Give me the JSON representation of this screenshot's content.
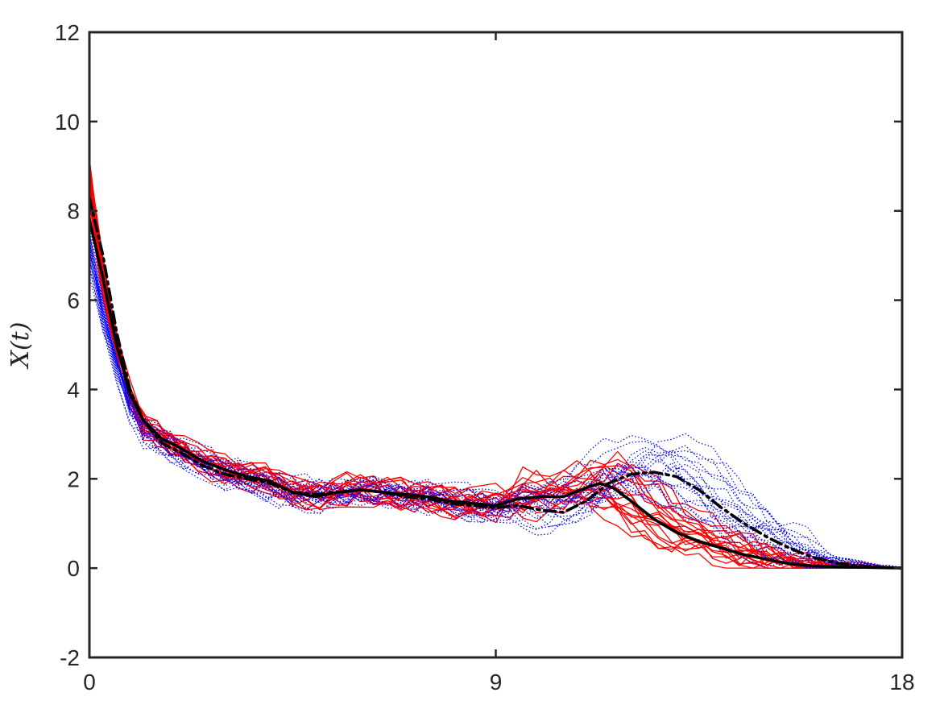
{
  "chart_data": {
    "type": "line",
    "title": "",
    "xlabel": "",
    "ylabel": "X(t)",
    "xlim": [
      0,
      18
    ],
    "ylim": [
      -2,
      12
    ],
    "xticks": [
      0,
      9,
      18
    ],
    "yticks": [
      -2,
      0,
      2,
      4,
      6,
      8,
      10,
      12
    ],
    "grid": false,
    "legend": "none",
    "colors": {
      "red_traces": "#ff0000",
      "blue_traces": "#0000ff",
      "mean_lines": "#000000",
      "axes": "#262626"
    },
    "series": [
      {
        "style": "solid-thick",
        "color": "#000000",
        "x": [
          0,
          0.3,
          0.6,
          0.9,
          1.2,
          1.6,
          2.0,
          2.5,
          3.0,
          3.5,
          4.0,
          4.5,
          5.0,
          5.5,
          6.0,
          6.5,
          7.0,
          7.5,
          8.0,
          8.5,
          9.0,
          9.5,
          10.0,
          10.5,
          11.0,
          11.3,
          11.6,
          12.0,
          12.5,
          13.0,
          13.5,
          14.0,
          14.5,
          15.0,
          15.5,
          16.0,
          16.5,
          17.0,
          17.5,
          18.0
        ],
        "y": [
          7.8,
          6.5,
          5.0,
          3.9,
          3.3,
          2.9,
          2.7,
          2.4,
          2.2,
          2.05,
          1.95,
          1.7,
          1.6,
          1.7,
          1.75,
          1.7,
          1.65,
          1.6,
          1.5,
          1.45,
          1.4,
          1.55,
          1.6,
          1.6,
          1.8,
          1.9,
          1.8,
          1.5,
          1.1,
          0.8,
          0.6,
          0.45,
          0.3,
          0.2,
          0.1,
          0.05,
          0.03,
          0.02,
          0.01,
          0.0
        ]
      },
      {
        "style": "dash-dot-thick",
        "color": "#000000",
        "x": [
          0,
          0.3,
          0.6,
          0.9,
          1.2,
          1.6,
          2.0,
          2.5,
          3.0,
          3.5,
          4.0,
          4.5,
          5.0,
          5.5,
          6.0,
          6.5,
          7.0,
          7.5,
          8.0,
          8.5,
          9.0,
          9.5,
          10.0,
          10.5,
          11.0,
          11.5,
          12.0,
          12.5,
          13.0,
          13.5,
          14.0,
          14.5,
          15.0,
          15.5,
          16.0,
          16.5,
          17.0,
          17.5,
          18.0
        ],
        "y": [
          8.3,
          7.0,
          5.3,
          4.0,
          3.3,
          2.8,
          2.6,
          2.3,
          2.1,
          2.0,
          1.9,
          1.7,
          1.65,
          1.7,
          1.75,
          1.7,
          1.6,
          1.55,
          1.45,
          1.4,
          1.35,
          1.4,
          1.3,
          1.25,
          1.5,
          1.9,
          2.1,
          2.15,
          2.05,
          1.75,
          1.35,
          1.0,
          0.7,
          0.45,
          0.25,
          0.12,
          0.05,
          0.02,
          0.0
        ]
      }
    ],
    "ensembles": [
      {
        "style": "solid-thin",
        "color": "#ff0000",
        "count": 20
      },
      {
        "style": "dotted-thin",
        "color": "#0000ff",
        "count": 20
      }
    ]
  }
}
